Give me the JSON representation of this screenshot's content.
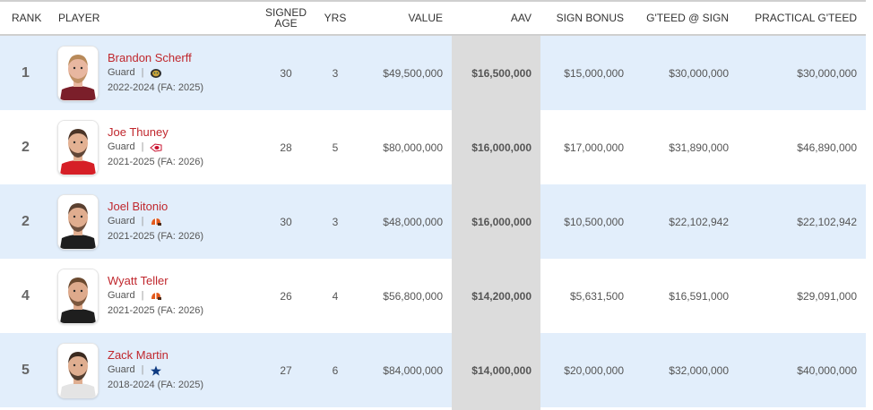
{
  "table": {
    "headers": {
      "rank": "RANK",
      "player": "PLAYER",
      "signed_age_line1": "SIGNED",
      "signed_age_line2": "AGE",
      "yrs": "YRS",
      "value": "VALUE",
      "aav": "AAV",
      "sign_bonus": "SIGN BONUS",
      "gteed_at_sign": "G'TEED @ SIGN",
      "practical_gteed": "PRACTICAL G'TEED"
    },
    "rows": [
      {
        "rank": "1",
        "name": "Brandon Scherff",
        "position": "Guard",
        "team_icon": "jaguars-logo-icon",
        "contract": "2022-2024 (FA: 2025)",
        "age": "30",
        "yrs": "3",
        "value": "$49,500,000",
        "aav": "$16,500,000",
        "sign_bonus": "$15,000,000",
        "gteed_at_sign": "$30,000,000",
        "practical_gteed": "$30,000,000",
        "jersey_color": "#7b1f2a",
        "skin": "#e8b7a0",
        "hair": "#b88a5a"
      },
      {
        "rank": "2",
        "name": "Joe Thuney",
        "position": "Guard",
        "team_icon": "chiefs-logo-icon",
        "contract": "2021-2025 (FA: 2026)",
        "age": "28",
        "yrs": "5",
        "value": "$80,000,000",
        "aav": "$16,000,000",
        "sign_bonus": "$17,000,000",
        "gteed_at_sign": "$31,890,000",
        "practical_gteed": "$46,890,000",
        "jersey_color": "#d61f26",
        "skin": "#e3b193",
        "hair": "#4a3427"
      },
      {
        "rank": "2",
        "name": "Joel Bitonio",
        "position": "Guard",
        "team_icon": "browns-logo-icon",
        "contract": "2021-2025 (FA: 2026)",
        "age": "30",
        "yrs": "3",
        "value": "$48,000,000",
        "aav": "$16,000,000",
        "sign_bonus": "$10,500,000",
        "gteed_at_sign": "$22,102,942",
        "practical_gteed": "$22,102,942",
        "jersey_color": "#1e1e1e",
        "skin": "#e0ad8f",
        "hair": "#5a4030"
      },
      {
        "rank": "4",
        "name": "Wyatt Teller",
        "position": "Guard",
        "team_icon": "browns-logo-icon",
        "contract": "2021-2025 (FA: 2026)",
        "age": "26",
        "yrs": "4",
        "value": "$56,800,000",
        "aav": "$14,200,000",
        "sign_bonus": "$5,631,500",
        "gteed_at_sign": "$16,591,000",
        "practical_gteed": "$29,091,000",
        "jersey_color": "#1e1e1e",
        "skin": "#deaa8c",
        "hair": "#6b4a30"
      },
      {
        "rank": "5",
        "name": "Zack Martin",
        "position": "Guard",
        "team_icon": "cowboys-star-icon",
        "contract": "2018-2024 (FA: 2025)",
        "age": "27",
        "yrs": "6",
        "value": "$84,000,000",
        "aav": "$14,000,000",
        "sign_bonus": "$20,000,000",
        "gteed_at_sign": "$32,000,000",
        "practical_gteed": "$40,000,000",
        "jersey_color": "#e4e4e4",
        "skin": "#dfae90",
        "hair": "#3a2a20"
      }
    ]
  },
  "colors": {
    "name_link": "#c0272d",
    "row_alt_bg": "#e2eefb",
    "aav_column_bg": "#dcdcdc",
    "header_rule": "#cfcfcf"
  }
}
